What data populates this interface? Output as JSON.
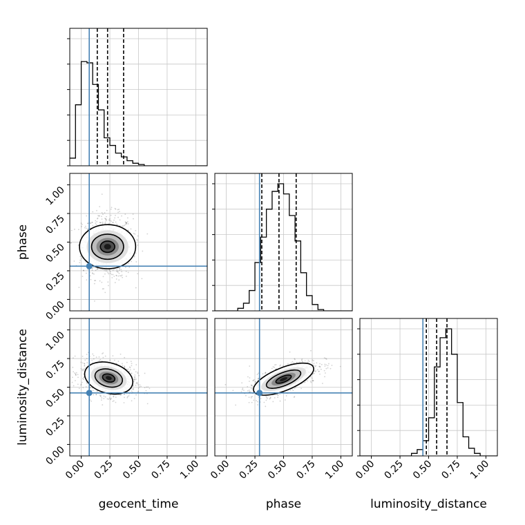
{
  "chart_data": {
    "type": "corner",
    "parameters": [
      "geocent_time",
      "phase",
      "luminosity_distance"
    ],
    "axis_range": [
      -0.1,
      1.1
    ],
    "ticks": [
      "0.00",
      "0.25",
      "0.50",
      "0.75",
      "1.00"
    ],
    "grid": true,
    "colors": {
      "truth": "#4682b4",
      "hist": "#000000",
      "grid": "#c8c8c8"
    },
    "truths": {
      "geocent_time": 0.07,
      "phase": 0.29,
      "luminosity_distance": 0.45
    },
    "quantiles": {
      "geocent_time": [
        0.14,
        0.23,
        0.37
      ],
      "phase": [
        0.31,
        0.46,
        0.61
      ],
      "luminosity_distance": [
        0.48,
        0.57,
        0.66
      ]
    },
    "histograms": {
      "geocent_time": {
        "bin_start": -0.1,
        "bin_width": 0.05,
        "counts": [
          0.06,
          0.48,
          0.82,
          0.81,
          0.64,
          0.44,
          0.22,
          0.16,
          0.1,
          0.07,
          0.04,
          0.02,
          0.01,
          0,
          0,
          0,
          0,
          0,
          0,
          0,
          0,
          0,
          0,
          0
        ]
      },
      "phase": {
        "bin_start": -0.1,
        "bin_width": 0.05,
        "counts": [
          0,
          0,
          0,
          0,
          0.02,
          0.06,
          0.16,
          0.38,
          0.58,
          0.8,
          0.94,
          1.0,
          0.92,
          0.75,
          0.55,
          0.3,
          0.12,
          0.05,
          0.01,
          0,
          0,
          0,
          0,
          0
        ]
      },
      "luminosity_distance": {
        "bin_start": -0.1,
        "bin_width": 0.05,
        "counts": [
          0,
          0,
          0,
          0,
          0,
          0,
          0,
          0,
          0,
          0.02,
          0.05,
          0.12,
          0.3,
          0.7,
          0.93,
          1.0,
          0.8,
          0.42,
          0.15,
          0.06,
          0.02,
          0,
          0,
          0
        ]
      }
    },
    "pairs": [
      {
        "x": "geocent_time",
        "y": "phase",
        "mean": [
          0.23,
          0.46
        ],
        "sd": [
          0.11,
          0.14
        ],
        "rho": 0
      },
      {
        "x": "geocent_time",
        "y": "luminosity_distance",
        "mean": [
          0.24,
          0.58
        ],
        "sd": [
          0.12,
          0.08
        ],
        "rho": -0.25
      },
      {
        "x": "phase",
        "y": "luminosity_distance",
        "mean": [
          0.5,
          0.57
        ],
        "sd": [
          0.15,
          0.08
        ],
        "rho": 0.65
      }
    ]
  }
}
